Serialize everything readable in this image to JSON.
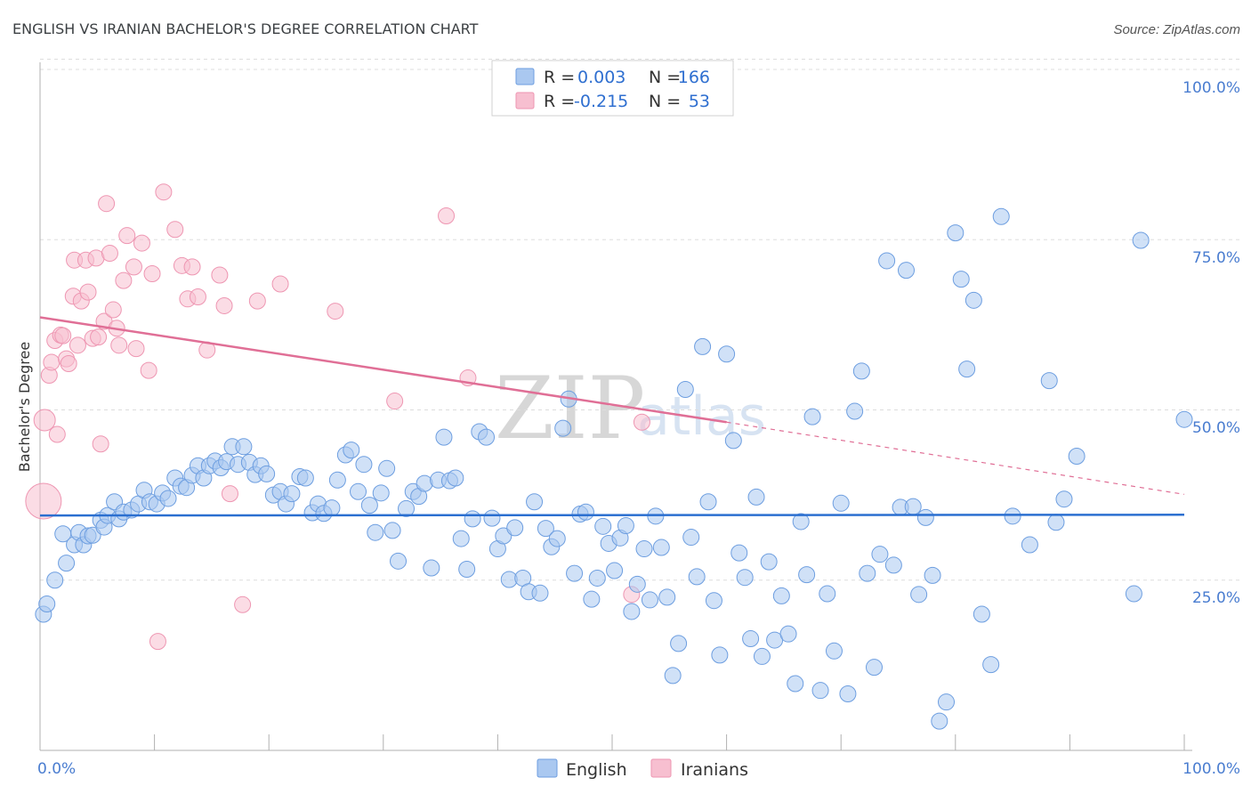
{
  "title": "ENGLISH VS IRANIAN BACHELOR'S DEGREE CORRELATION CHART",
  "source": "Source: ZipAtlas.com",
  "watermark": {
    "zip": "ZIP",
    "atlas": "atlas"
  },
  "colors": {
    "english_fill": "#aac8f0",
    "english_stroke": "#6d9ee0",
    "english_line": "#2b6fd0",
    "iranian_fill": "#f7bfd0",
    "iranian_stroke": "#ee96b2",
    "iranian_line": "#e06f96",
    "grid": "#dddddd",
    "axis_text": "#4a7dd0"
  },
  "legend": {
    "rows": [
      {
        "r_label": "R =",
        "r_value": "0.003",
        "n_label": "N =",
        "n_value": "166"
      },
      {
        "r_label": "R =",
        "r_value": "-0.215",
        "n_label": "N =",
        "n_value": "53"
      }
    ]
  },
  "bottom_legend": [
    "English",
    "Iranians"
  ],
  "chart_data": {
    "type": "scatter",
    "title": "ENGLISH VS IRANIAN BACHELOR'S DEGREE CORRELATION CHART",
    "xlabel": "",
    "ylabel": "Bachelor's Degree",
    "xlim": [
      0,
      100
    ],
    "ylim": [
      0,
      100
    ],
    "x_tick_labels": [
      "0.0%",
      "100.0%"
    ],
    "y_tick_labels": [
      "100.0%",
      "75.0%",
      "50.0%",
      "25.0%"
    ],
    "y_tick_values": [
      100,
      75,
      50,
      25
    ],
    "grid": true,
    "legend_position": "top-center",
    "series": [
      {
        "name": "English",
        "r": 0.003,
        "n": 166,
        "trend": {
          "x": [
            0,
            100
          ],
          "y": [
            34.5,
            34.6
          ]
        },
        "points": [
          [
            0.3,
            20
          ],
          [
            0.6,
            21.5
          ],
          [
            1.3,
            25
          ],
          [
            2,
            31.8
          ],
          [
            2.3,
            27.5
          ],
          [
            3,
            30.2
          ],
          [
            3.4,
            32
          ],
          [
            3.8,
            30.2
          ],
          [
            4.2,
            31.5
          ],
          [
            4.6,
            31.6
          ],
          [
            5.3,
            33.8
          ],
          [
            5.6,
            32.8
          ],
          [
            5.9,
            34.5
          ],
          [
            6.5,
            36.5
          ],
          [
            6.9,
            34
          ],
          [
            7.3,
            35
          ],
          [
            8,
            35.3
          ],
          [
            8.6,
            36.2
          ],
          [
            9.1,
            38.2
          ],
          [
            9.6,
            36.5
          ],
          [
            10.2,
            36.2
          ],
          [
            10.7,
            37.8
          ],
          [
            11.2,
            37
          ],
          [
            11.8,
            40
          ],
          [
            12.3,
            38.8
          ],
          [
            12.8,
            38.6
          ],
          [
            13.3,
            40.4
          ],
          [
            13.8,
            41.8
          ],
          [
            14.3,
            40
          ],
          [
            14.8,
            41.8
          ],
          [
            15.3,
            42.5
          ],
          [
            15.8,
            41.5
          ],
          [
            16.3,
            42.4
          ],
          [
            16.8,
            44.6
          ],
          [
            17.3,
            42
          ],
          [
            17.8,
            44.6
          ],
          [
            18.3,
            42.3
          ],
          [
            18.8,
            40.5
          ],
          [
            19.3,
            41.8
          ],
          [
            19.8,
            40.6
          ],
          [
            20.4,
            37.5
          ],
          [
            21,
            38
          ],
          [
            21.5,
            36.2
          ],
          [
            22,
            37.7
          ],
          [
            22.7,
            40.2
          ],
          [
            23.2,
            40
          ],
          [
            23.8,
            34.9
          ],
          [
            24.3,
            36.2
          ],
          [
            24.8,
            34.8
          ],
          [
            25.5,
            35.6
          ],
          [
            26,
            39.7
          ],
          [
            26.7,
            43.4
          ],
          [
            27.2,
            44.1
          ],
          [
            27.8,
            38
          ],
          [
            28.3,
            42
          ],
          [
            28.8,
            36
          ],
          [
            29.3,
            32
          ],
          [
            29.8,
            37.8
          ],
          [
            30.3,
            41.4
          ],
          [
            30.8,
            32.3
          ],
          [
            31.3,
            27.8
          ],
          [
            32,
            35.5
          ],
          [
            32.6,
            38
          ],
          [
            33.1,
            37.3
          ],
          [
            33.6,
            39.2
          ],
          [
            34.2,
            26.8
          ],
          [
            34.8,
            39.7
          ],
          [
            35.3,
            46
          ],
          [
            35.8,
            39.6
          ],
          [
            36.3,
            40
          ],
          [
            36.8,
            31.1
          ],
          [
            37.3,
            26.6
          ],
          [
            37.8,
            34
          ],
          [
            38.4,
            46.8
          ],
          [
            39,
            46
          ],
          [
            39.5,
            34.1
          ],
          [
            40,
            29.6
          ],
          [
            40.5,
            31.5
          ],
          [
            41,
            25.1
          ],
          [
            41.5,
            32.7
          ],
          [
            42.2,
            25.3
          ],
          [
            42.7,
            23.3
          ],
          [
            43.2,
            36.5
          ],
          [
            43.7,
            23.1
          ],
          [
            44.2,
            32.6
          ],
          [
            44.7,
            29.9
          ],
          [
            45.2,
            31.1
          ],
          [
            45.7,
            47.3
          ],
          [
            46.2,
            51.6
          ],
          [
            46.7,
            26
          ],
          [
            47.2,
            34.7
          ],
          [
            47.7,
            35
          ],
          [
            48.2,
            22.2
          ],
          [
            48.7,
            25.3
          ],
          [
            49.2,
            32.9
          ],
          [
            49.7,
            30.4
          ],
          [
            50.2,
            26.4
          ],
          [
            50.7,
            31.2
          ],
          [
            51.2,
            33
          ],
          [
            51.7,
            20.4
          ],
          [
            52.2,
            24.4
          ],
          [
            52.8,
            29.6
          ],
          [
            53.3,
            22.1
          ],
          [
            53.8,
            34.4
          ],
          [
            54.3,
            29.8
          ],
          [
            54.8,
            22.5
          ],
          [
            55.3,
            11
          ],
          [
            55.8,
            15.7
          ],
          [
            56.4,
            53
          ],
          [
            56.9,
            31.3
          ],
          [
            57.4,
            25.5
          ],
          [
            57.9,
            59.3
          ],
          [
            58.4,
            36.5
          ],
          [
            58.9,
            22
          ],
          [
            59.4,
            14
          ],
          [
            60,
            58.2
          ],
          [
            60.6,
            45.5
          ],
          [
            61.1,
            29
          ],
          [
            61.6,
            25.4
          ],
          [
            62.1,
            16.4
          ],
          [
            62.6,
            37.2
          ],
          [
            63.1,
            13.8
          ],
          [
            63.7,
            27.7
          ],
          [
            64.2,
            16.2
          ],
          [
            64.8,
            22.7
          ],
          [
            65.4,
            17.1
          ],
          [
            66,
            9.8
          ],
          [
            66.5,
            33.6
          ],
          [
            67,
            25.8
          ],
          [
            67.5,
            49
          ],
          [
            68.2,
            8.8
          ],
          [
            68.8,
            23
          ],
          [
            69.4,
            14.6
          ],
          [
            70,
            36.3
          ],
          [
            70.6,
            8.3
          ],
          [
            71.2,
            49.8
          ],
          [
            71.8,
            55.7
          ],
          [
            72.3,
            26
          ],
          [
            72.9,
            12.2
          ],
          [
            73.4,
            28.8
          ],
          [
            74,
            71.9
          ],
          [
            74.6,
            27.2
          ],
          [
            75.2,
            35.7
          ],
          [
            75.7,
            70.5
          ],
          [
            76.3,
            35.8
          ],
          [
            76.8,
            22.9
          ],
          [
            77.4,
            34.2
          ],
          [
            78,
            25.7
          ],
          [
            78.6,
            4.3
          ],
          [
            79.2,
            7.1
          ],
          [
            80,
            76
          ],
          [
            80.5,
            69.2
          ],
          [
            81,
            56
          ],
          [
            81.6,
            66.1
          ],
          [
            82.3,
            20
          ],
          [
            83.1,
            12.6
          ],
          [
            84,
            78.4
          ],
          [
            85,
            34.4
          ],
          [
            86.5,
            30.2
          ],
          [
            88.2,
            54.3
          ],
          [
            88.8,
            33.5
          ],
          [
            89.5,
            36.9
          ],
          [
            90.6,
            43.2
          ],
          [
            95.6,
            23
          ],
          [
            96.2,
            74.9
          ],
          [
            100,
            48.6
          ]
        ]
      },
      {
        "name": "Iranians",
        "r": -0.215,
        "n": 53,
        "trend": {
          "x": [
            0,
            60
          ],
          "y": [
            63.6,
            48.2
          ]
        },
        "trend_dashed": {
          "x": [
            60,
            100
          ],
          "y": [
            48.2,
            37.6
          ]
        },
        "points": [
          [
            0.3,
            36.6
          ],
          [
            0.4,
            48.5
          ],
          [
            0.8,
            55.1
          ],
          [
            1,
            57
          ],
          [
            1.3,
            60.2
          ],
          [
            1.5,
            46.4
          ],
          [
            1.8,
            61
          ],
          [
            2,
            60.9
          ],
          [
            2.3,
            57.5
          ],
          [
            2.5,
            56.8
          ],
          [
            2.9,
            66.7
          ],
          [
            3,
            72
          ],
          [
            3.3,
            59.5
          ],
          [
            3.6,
            66
          ],
          [
            4,
            72
          ],
          [
            4.2,
            67.3
          ],
          [
            4.6,
            60.5
          ],
          [
            4.9,
            72.3
          ],
          [
            5.1,
            60.7
          ],
          [
            5.3,
            45
          ],
          [
            5.6,
            63
          ],
          [
            5.8,
            80.3
          ],
          [
            6.1,
            73
          ],
          [
            6.4,
            64.7
          ],
          [
            6.7,
            62
          ],
          [
            6.9,
            59.5
          ],
          [
            7.3,
            69
          ],
          [
            7.6,
            75.6
          ],
          [
            8.2,
            71
          ],
          [
            8.4,
            59
          ],
          [
            8.9,
            74.5
          ],
          [
            9.5,
            55.8
          ],
          [
            9.8,
            70
          ],
          [
            10.3,
            16
          ],
          [
            10.8,
            82
          ],
          [
            11.8,
            76.5
          ],
          [
            12.4,
            71.2
          ],
          [
            12.9,
            66.3
          ],
          [
            13.3,
            71
          ],
          [
            13.8,
            66.6
          ],
          [
            14.6,
            58.8
          ],
          [
            15.7,
            69.8
          ],
          [
            16.1,
            65.3
          ],
          [
            16.6,
            37.7
          ],
          [
            17.7,
            21.4
          ],
          [
            19,
            66
          ],
          [
            21,
            68.5
          ],
          [
            25.8,
            64.5
          ],
          [
            31,
            51.3
          ],
          [
            35.5,
            78.5
          ],
          [
            37.4,
            54.7
          ],
          [
            51.7,
            22.9
          ],
          [
            52.6,
            48.2
          ]
        ]
      }
    ]
  }
}
